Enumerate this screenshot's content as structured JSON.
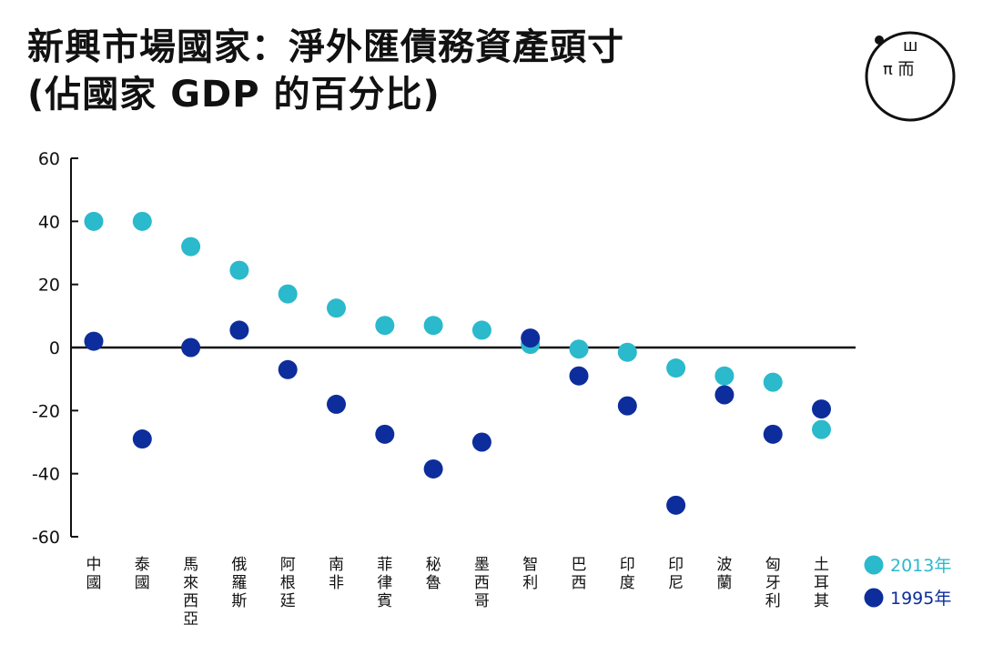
{
  "title": {
    "line1": "新興市場國家：淨外匯債務資產頭寸",
    "line2": "(佔國家 GDP 的百分比)"
  },
  "logo": {
    "text_top": "ш",
    "text_bottom": "π 而"
  },
  "colors": {
    "series_2013": "#2bb9cc",
    "series_1995": "#0d2d9c",
    "axis": "#111111",
    "text": "#111111"
  },
  "chart_data": {
    "type": "scatter",
    "categories": [
      "中國",
      "泰國",
      "馬來西亞",
      "俄羅斯",
      "阿根廷",
      "南非",
      "菲律賓",
      "秘魯",
      "墨西哥",
      "智利",
      "巴西",
      "印度",
      "印尼",
      "波蘭",
      "匈牙利",
      "土耳其"
    ],
    "series": [
      {
        "name": "2013年",
        "color": "#2bb9cc",
        "values": [
          40,
          40,
          32,
          24.5,
          17,
          12.5,
          7,
          7,
          5.5,
          1,
          -0.5,
          -1.5,
          -6.5,
          -9,
          -11,
          -26
        ]
      },
      {
        "name": "1995年",
        "color": "#0d2d9c",
        "values": [
          2,
          -29,
          0,
          5.5,
          -7,
          -18,
          -27.5,
          null,
          -30,
          3,
          -9,
          -18.5,
          -50,
          -15,
          -27.5,
          -19.5
        ]
      }
    ],
    "extra_points": [
      {
        "series": "1995年",
        "category": "秘魯",
        "value": -38.5
      }
    ],
    "ylim": [
      -60,
      60
    ],
    "yticks": [
      60,
      40,
      20,
      0,
      -20,
      -40,
      -60
    ],
    "ytick_labels": [
      "60",
      "40",
      "20",
      "0",
      "-20",
      "-40",
      "-60"
    ],
    "xlabel": "",
    "ylabel": "",
    "legend_position": "right-bottom",
    "grid": false
  }
}
